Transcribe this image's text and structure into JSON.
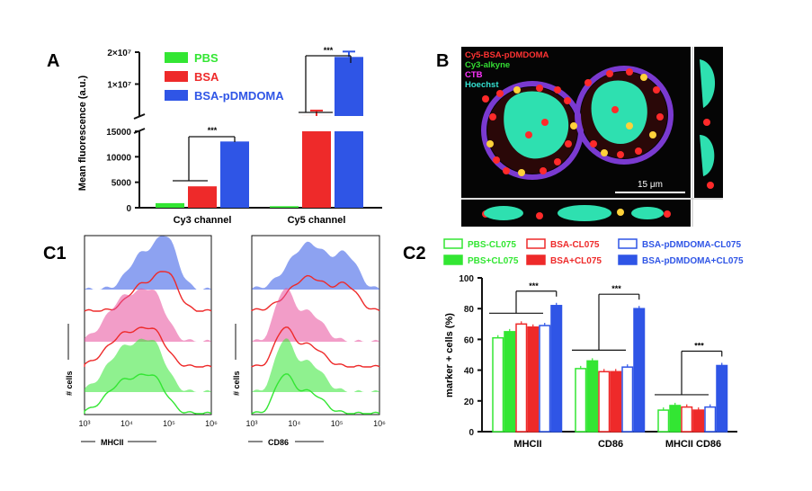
{
  "panel_labels": {
    "a": "A",
    "b": "B",
    "c1": "C1",
    "c2": "C2"
  },
  "colors": {
    "pbs": "#33e633",
    "bsa": "#ee2a2a",
    "bsa_pdmdoma": "#2f55e6",
    "pink": "#e84c9a",
    "micro_bg": "#050505",
    "nucleus": "#2ee0b0"
  },
  "chart_data": [
    {
      "type": "bar",
      "panel": "A",
      "ylabel": "Mean fluorescence (a.u.)",
      "categories": [
        "Cy3 channel",
        "Cy5 channel"
      ],
      "series": [
        {
          "name": "PBS",
          "values": [
            900,
            300
          ]
        },
        {
          "name": "BSA",
          "values": [
            4200,
            15200
          ]
        },
        {
          "name": "BSA-pDMDOMA",
          "values": [
            13000,
            18500000
          ]
        }
      ],
      "yticks_lower": [
        "0",
        "5000",
        "10000",
        "15000"
      ],
      "yticks_upper": [
        "1×10⁷",
        "2×10⁷"
      ],
      "ylim_lower": [
        0,
        15000
      ],
      "ylim_upper": [
        0,
        20000000
      ],
      "significance": [
        "***",
        "***"
      ]
    },
    {
      "type": "bar",
      "panel": "C2",
      "ylabel": "marker + cells (%)",
      "categories": [
        "MHCII",
        "CD86",
        "MHCII CD86"
      ],
      "series": [
        {
          "name": "PBS-CL075",
          "values": [
            61,
            41,
            14
          ]
        },
        {
          "name": "PBS+CL075",
          "values": [
            65,
            46,
            17
          ]
        },
        {
          "name": "BSA-CL075",
          "values": [
            70,
            39,
            16
          ]
        },
        {
          "name": "BSA+CL075",
          "values": [
            68,
            39,
            14
          ]
        },
        {
          "name": "BSA-pDMDOMA-CL075",
          "values": [
            69,
            42,
            16
          ]
        },
        {
          "name": "BSA-pDMDOMA+CL075",
          "values": [
            82,
            80,
            43
          ]
        }
      ],
      "ylim": [
        0,
        100
      ],
      "yticks": [
        "0",
        "20",
        "40",
        "60",
        "80",
        "100"
      ],
      "significance": [
        "***",
        "***",
        "***"
      ]
    },
    {
      "type": "area",
      "panel": "C1",
      "histograms": [
        {
          "marker": "MHCII",
          "ylabel": "# cells",
          "xlabel": "MHCII",
          "xticks": [
            "10³",
            "10⁴",
            "10⁵",
            "10⁶"
          ]
        },
        {
          "marker": "CD86",
          "ylabel": "# cells",
          "xlabel": "CD86",
          "xticks": [
            "10³",
            "10⁴",
            "10⁵",
            "10⁶"
          ]
        }
      ]
    }
  ],
  "micrograph": {
    "legend": [
      "Cy5-BSA-pDMDOMA",
      "Cy3-alkyne",
      "CTB",
      "Hoechst"
    ],
    "legend_colors": [
      "#ff3333",
      "#33dd33",
      "#ff33ff",
      "#33e0d0"
    ],
    "scalebar": "15 μm"
  }
}
